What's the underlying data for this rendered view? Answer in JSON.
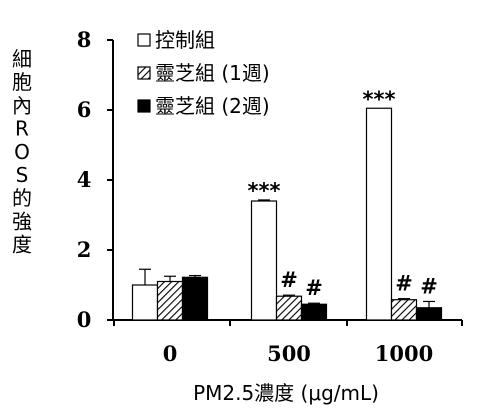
{
  "chart_data": {
    "type": "bar",
    "ylabel": "細胞內ROS的強度",
    "xlabel": "PM2.5濃度 (μg/mL)",
    "ylim": [
      0,
      8
    ],
    "yticks": [
      0,
      2,
      4,
      6,
      8
    ],
    "categories": [
      "0",
      "500",
      "1000"
    ],
    "legend_position": "top-left",
    "series": [
      {
        "name": "控制組",
        "pattern": "white",
        "values": [
          1.0,
          3.4,
          6.05
        ],
        "errors": [
          0.45,
          0.03,
          0.0
        ],
        "annotations": [
          "",
          "***",
          "***"
        ]
      },
      {
        "name": "靈芝組 (1週)",
        "pattern": "hatched",
        "values": [
          1.1,
          0.68,
          0.58
        ],
        "errors": [
          0.15,
          0.03,
          0.03
        ],
        "annotations": [
          "",
          "#",
          "#"
        ]
      },
      {
        "name": "靈芝組 (2週)",
        "pattern": "black",
        "values": [
          1.22,
          0.45,
          0.35
        ],
        "errors": [
          0.05,
          0.03,
          0.18
        ],
        "annotations": [
          "",
          "#",
          "#"
        ]
      }
    ]
  }
}
